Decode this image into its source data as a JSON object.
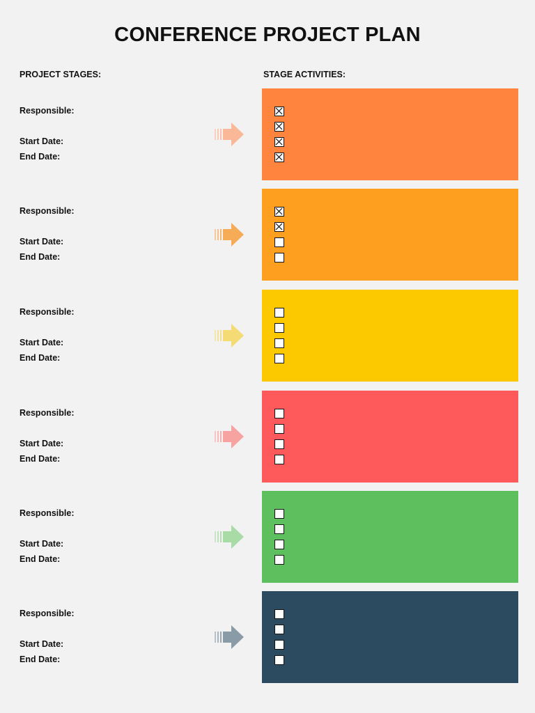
{
  "title": "CONFERENCE PROJECT PLAN",
  "headers": {
    "left": "PROJECT STAGES:",
    "right": "STAGE ACTIVITIES:"
  },
  "labels": {
    "responsible": "Responsible:",
    "start": "Start Date:",
    "end": "End Date:"
  },
  "stages": [
    {
      "color": "#ff853e",
      "arrow_color": "#fbb899",
      "checks": [
        true,
        true,
        true,
        true
      ]
    },
    {
      "color": "#ff9f1f",
      "arrow_color": "#f6ab57",
      "checks": [
        true,
        true,
        false,
        false
      ]
    },
    {
      "color": "#fcc900",
      "arrow_color": "#f5db74",
      "checks": [
        false,
        false,
        false,
        false
      ]
    },
    {
      "color": "#ff5a5b",
      "arrow_color": "#f7a3a1",
      "checks": [
        false,
        false,
        false,
        false
      ]
    },
    {
      "color": "#5ebf5e",
      "arrow_color": "#a8dba6",
      "checks": [
        false,
        false,
        false,
        false
      ]
    },
    {
      "color": "#2d4b60",
      "arrow_color": "#8a9ba8",
      "checks": [
        false,
        false,
        false,
        false
      ]
    }
  ]
}
